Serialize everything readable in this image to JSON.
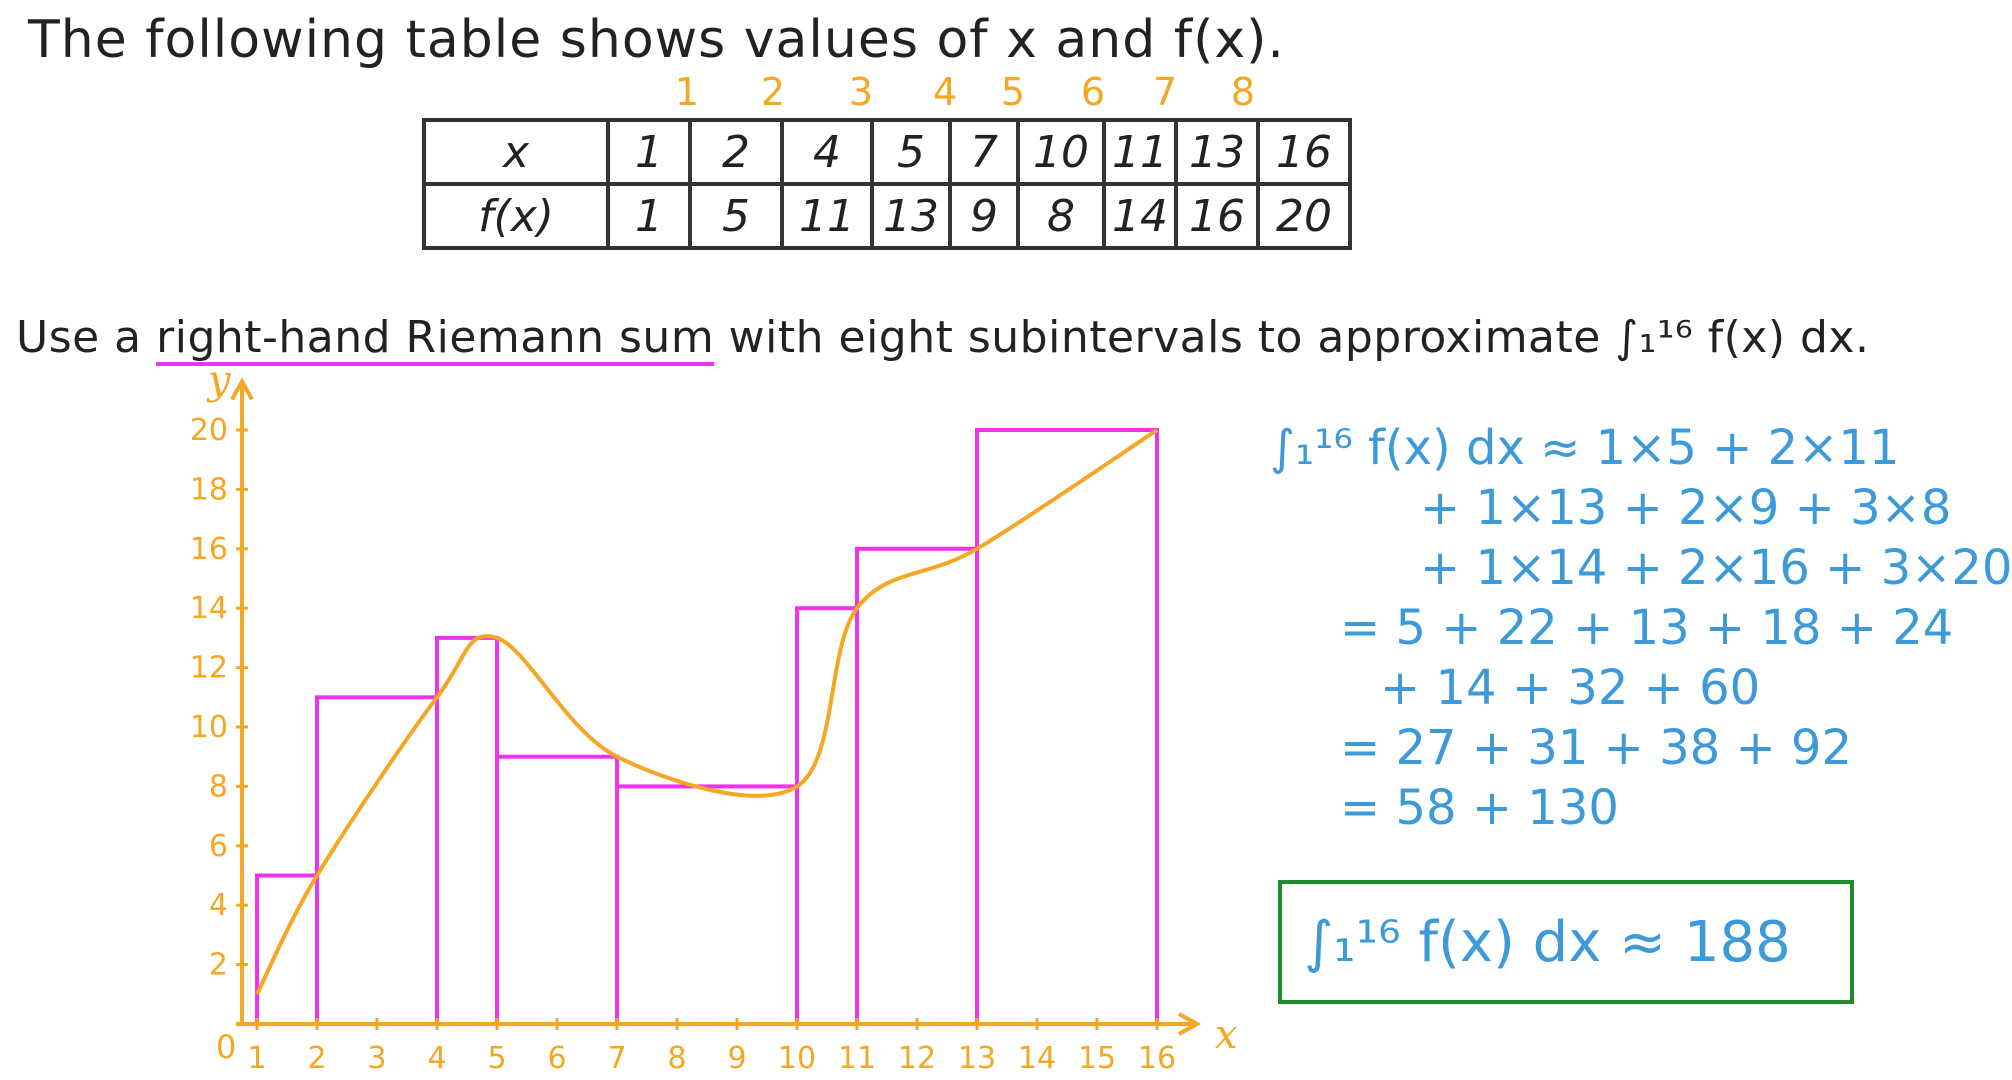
{
  "problem": {
    "intro": "The following table shows values of x and f(x).",
    "instruction_pre": "Use a ",
    "instruction_underlined": "right-hand Riemann sum",
    "instruction_post": " with eight subintervals to approximate ∫₁¹⁶ f(x) dx."
  },
  "table": {
    "row_x_label": "x",
    "row_f_label": "f(x)",
    "x_values": [
      "1",
      "2",
      "4",
      "5",
      "7",
      "10",
      "11",
      "13",
      "16"
    ],
    "f_values": [
      "1",
      "5",
      "11",
      "13",
      "9",
      "8",
      "14",
      "16",
      "20"
    ],
    "interval_numbers": [
      "1",
      "2",
      "3",
      "4",
      "5",
      "6",
      "7",
      "8"
    ]
  },
  "graph": {
    "x_axis_label": "x",
    "y_axis_label": "y",
    "origin_label": "0",
    "x_ticks": [
      "1",
      "2",
      "3",
      "4",
      "5",
      "6",
      "7",
      "8",
      "9",
      "10",
      "11",
      "12",
      "13",
      "14",
      "15",
      "16"
    ],
    "y_ticks": [
      "2",
      "4",
      "6",
      "8",
      "10",
      "12",
      "14",
      "16",
      "18",
      "20"
    ],
    "points": [
      [
        1,
        1
      ],
      [
        2,
        5
      ],
      [
        4,
        11
      ],
      [
        5,
        13
      ],
      [
        7,
        9
      ],
      [
        10,
        8
      ],
      [
        11,
        14
      ],
      [
        13,
        16
      ],
      [
        16,
        20
      ]
    ],
    "rectangles": [
      [
        1,
        2,
        5
      ],
      [
        2,
        4,
        11
      ],
      [
        4,
        5,
        13
      ],
      [
        5,
        7,
        9
      ],
      [
        7,
        10,
        8
      ],
      [
        10,
        11,
        14
      ],
      [
        11,
        13,
        16
      ],
      [
        13,
        16,
        20
      ]
    ],
    "colors": {
      "axes": "#f5a623",
      "curve": "#f5a623",
      "rects": "#ee33ee"
    }
  },
  "working": {
    "lines": [
      "∫₁¹⁶ f(x) dx ≈ 1×5 + 2×11",
      "+ 1×13 + 2×9 + 3×8",
      "+ 1×14 + 2×16 + 3×20",
      "= 5 + 22 + 13 + 18 + 24",
      "+ 14 + 32 + 60",
      "= 27 + 31 + 38 + 92",
      "= 58 + 130"
    ],
    "answer": "∫₁¹⁶ f(x) dx ≈ 188",
    "colors": {
      "text": "#3d9ad8",
      "box": "#1f8a2e"
    }
  }
}
